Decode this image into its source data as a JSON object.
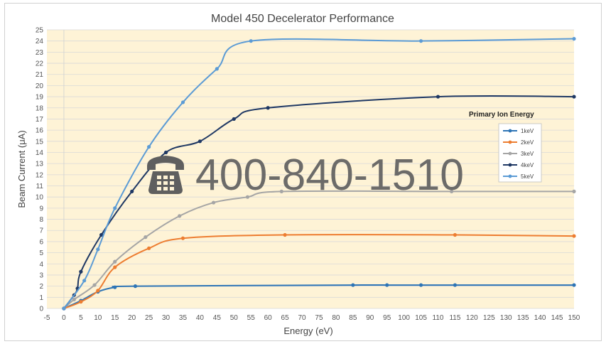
{
  "chart_data": {
    "type": "line",
    "title": "Model 450 Decelerator Performance",
    "xlabel": "Energy (eV)",
    "ylabel": "Beam Current (μA)",
    "xlim": [
      -5,
      150
    ],
    "ylim": [
      0,
      25
    ],
    "x_ticks": [
      -5,
      0,
      5,
      10,
      15,
      20,
      25,
      30,
      35,
      40,
      45,
      50,
      55,
      60,
      65,
      70,
      75,
      80,
      85,
      90,
      95,
      100,
      105,
      110,
      115,
      120,
      125,
      130,
      135,
      140,
      145,
      150
    ],
    "y_ticks": [
      0,
      1,
      2,
      3,
      4,
      5,
      6,
      7,
      8,
      9,
      10,
      11,
      12,
      13,
      14,
      15,
      16,
      17,
      18,
      19,
      20,
      21,
      22,
      23,
      24,
      25
    ],
    "grid": "horizontal",
    "legend_title": "Primary Ion Energy",
    "legend_position": "right",
    "series": [
      {
        "name": "1keV",
        "color": "#2e75b6",
        "points": [
          [
            0,
            0
          ],
          [
            5,
            0.7
          ],
          [
            10,
            1.5
          ],
          [
            15,
            1.9
          ],
          [
            21,
            2.0
          ],
          [
            85,
            2.1
          ],
          [
            95,
            2.1
          ],
          [
            105,
            2.1
          ],
          [
            115,
            2.1
          ],
          [
            150,
            2.1
          ]
        ]
      },
      {
        "name": "2keV",
        "color": "#ed7d31",
        "points": [
          [
            0,
            0
          ],
          [
            5,
            0.6
          ],
          [
            10,
            1.6
          ],
          [
            15,
            3.7
          ],
          [
            25,
            5.4
          ],
          [
            35,
            6.3
          ],
          [
            65,
            6.6
          ],
          [
            115,
            6.6
          ],
          [
            150,
            6.5
          ]
        ]
      },
      {
        "name": "3keV",
        "color": "#a5a5a5",
        "points": [
          [
            0,
            0
          ],
          [
            3,
            0.8
          ],
          [
            9,
            2.1
          ],
          [
            15,
            4.2
          ],
          [
            24,
            6.4
          ],
          [
            34,
            8.3
          ],
          [
            44,
            9.5
          ],
          [
            54,
            10.0
          ],
          [
            64,
            10.5
          ],
          [
            114,
            10.5
          ],
          [
            150,
            10.5
          ]
        ]
      },
      {
        "name": "4keV",
        "color": "#1f3864",
        "points": [
          [
            0,
            0
          ],
          [
            3,
            1.2
          ],
          [
            4,
            1.8
          ],
          [
            5,
            3.3
          ],
          [
            11,
            6.6
          ],
          [
            20,
            10.5
          ],
          [
            30,
            14.0
          ],
          [
            40,
            15.0
          ],
          [
            50,
            17.0
          ],
          [
            60,
            18.0
          ],
          [
            110,
            19.0
          ],
          [
            150,
            19.0
          ]
        ]
      },
      {
        "name": "5keV",
        "color": "#5b9bd5",
        "points": [
          [
            0,
            0
          ],
          [
            6,
            2.5
          ],
          [
            10,
            5.3
          ],
          [
            15,
            9.0
          ],
          [
            25,
            14.5
          ],
          [
            35,
            18.5
          ],
          [
            45,
            21.5
          ],
          [
            55,
            24.0
          ],
          [
            105,
            24.0
          ],
          [
            150,
            24.2
          ]
        ]
      }
    ]
  },
  "watermark": {
    "phone": "400-840-1510",
    "icon": "telephone-icon"
  }
}
